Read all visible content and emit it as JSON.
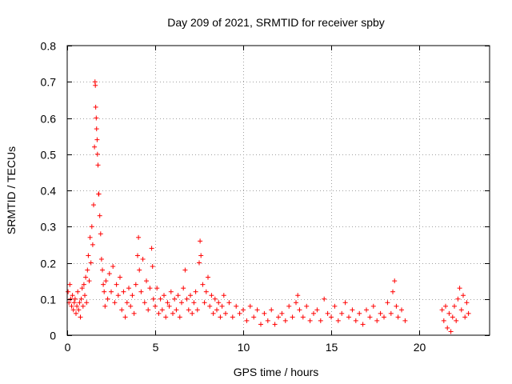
{
  "chart_data": {
    "type": "scatter",
    "title": "Day 209 of 2021, SRMTID for receiver spby",
    "xlabel": "GPS time / hours",
    "ylabel": "SRMTID / TECUs",
    "xlim": [
      0,
      24
    ],
    "ylim": [
      0,
      0.8
    ],
    "xticks": [
      0,
      5,
      10,
      15,
      20
    ],
    "xtick_labels": [
      "0",
      "5",
      "10",
      "15",
      "20"
    ],
    "yticks": [
      0,
      0.1,
      0.2,
      0.3,
      0.4,
      0.5,
      0.6,
      0.7,
      0.8
    ],
    "ytick_labels": [
      "0",
      "0.1",
      "0.2",
      "0.3",
      "0.4",
      "0.5",
      "0.6",
      "0.7",
      "0.8"
    ],
    "grid": true,
    "marker": "+",
    "marker_color": "#ff0000",
    "series": [
      {
        "name": "SRMTID",
        "points": [
          [
            0.05,
            0.12
          ],
          [
            0.1,
            0.09
          ],
          [
            0.15,
            0.14
          ],
          [
            0.2,
            0.1
          ],
          [
            0.25,
            0.08
          ],
          [
            0.3,
            0.11
          ],
          [
            0.35,
            0.07
          ],
          [
            0.4,
            0.09
          ],
          [
            0.45,
            0.1
          ],
          [
            0.5,
            0.06
          ],
          [
            0.55,
            0.08
          ],
          [
            0.6,
            0.12
          ],
          [
            0.65,
            0.07
          ],
          [
            0.7,
            0.09
          ],
          [
            0.75,
            0.05
          ],
          [
            0.8,
            0.1
          ],
          [
            0.85,
            0.13
          ],
          [
            0.9,
            0.08
          ],
          [
            0.95,
            0.14
          ],
          [
            1.0,
            0.11
          ],
          [
            1.05,
            0.16
          ],
          [
            1.1,
            0.09
          ],
          [
            1.15,
            0.18
          ],
          [
            1.2,
            0.22
          ],
          [
            1.25,
            0.15
          ],
          [
            1.3,
            0.27
          ],
          [
            1.35,
            0.2
          ],
          [
            1.4,
            0.3
          ],
          [
            1.45,
            0.25
          ],
          [
            1.5,
            0.36
          ],
          [
            1.55,
            0.52
          ],
          [
            1.58,
            0.7
          ],
          [
            1.6,
            0.69
          ],
          [
            1.62,
            0.63
          ],
          [
            1.65,
            0.6
          ],
          [
            1.67,
            0.57
          ],
          [
            1.7,
            0.54
          ],
          [
            1.72,
            0.5
          ],
          [
            1.75,
            0.47
          ],
          [
            1.78,
            0.39
          ],
          [
            1.8,
            0.39
          ],
          [
            1.85,
            0.33
          ],
          [
            1.9,
            0.28
          ],
          [
            1.95,
            0.21
          ],
          [
            2.0,
            0.18
          ],
          [
            2.05,
            0.14
          ],
          [
            2.1,
            0.12
          ],
          [
            2.15,
            0.08
          ],
          [
            2.2,
            0.15
          ],
          [
            2.3,
            0.1
          ],
          [
            2.4,
            0.17
          ],
          [
            2.5,
            0.12
          ],
          [
            2.6,
            0.19
          ],
          [
            2.7,
            0.09
          ],
          [
            2.8,
            0.14
          ],
          [
            2.9,
            0.11
          ],
          [
            3.0,
            0.16
          ],
          [
            3.1,
            0.07
          ],
          [
            3.2,
            0.12
          ],
          [
            3.3,
            0.05
          ],
          [
            3.4,
            0.09
          ],
          [
            3.5,
            0.13
          ],
          [
            3.6,
            0.08
          ],
          [
            3.7,
            0.11
          ],
          [
            3.8,
            0.06
          ],
          [
            3.9,
            0.14
          ],
          [
            4.0,
            0.22
          ],
          [
            4.05,
            0.27
          ],
          [
            4.1,
            0.18
          ],
          [
            4.2,
            0.12
          ],
          [
            4.3,
            0.21
          ],
          [
            4.4,
            0.09
          ],
          [
            4.5,
            0.15
          ],
          [
            4.6,
            0.07
          ],
          [
            4.7,
            0.13
          ],
          [
            4.8,
            0.24
          ],
          [
            4.85,
            0.19
          ],
          [
            4.9,
            0.1
          ],
          [
            5.0,
            0.08
          ],
          [
            5.1,
            0.13
          ],
          [
            5.2,
            0.06
          ],
          [
            5.3,
            0.1
          ],
          [
            5.4,
            0.07
          ],
          [
            5.5,
            0.11
          ],
          [
            5.6,
            0.05
          ],
          [
            5.7,
            0.09
          ],
          [
            5.8,
            0.08
          ],
          [
            5.9,
            0.12
          ],
          [
            6.0,
            0.06
          ],
          [
            6.1,
            0.1
          ],
          [
            6.2,
            0.07
          ],
          [
            6.3,
            0.11
          ],
          [
            6.4,
            0.05
          ],
          [
            6.5,
            0.09
          ],
          [
            6.6,
            0.13
          ],
          [
            6.7,
            0.18
          ],
          [
            6.8,
            0.1
          ],
          [
            6.9,
            0.07
          ],
          [
            7.0,
            0.11
          ],
          [
            7.1,
            0.06
          ],
          [
            7.2,
            0.09
          ],
          [
            7.3,
            0.12
          ],
          [
            7.4,
            0.07
          ],
          [
            7.5,
            0.2
          ],
          [
            7.55,
            0.26
          ],
          [
            7.6,
            0.22
          ],
          [
            7.7,
            0.14
          ],
          [
            7.8,
            0.09
          ],
          [
            7.9,
            0.12
          ],
          [
            8.0,
            0.16
          ],
          [
            8.1,
            0.08
          ],
          [
            8.2,
            0.11
          ],
          [
            8.3,
            0.06
          ],
          [
            8.4,
            0.1
          ],
          [
            8.5,
            0.07
          ],
          [
            8.6,
            0.09
          ],
          [
            8.7,
            0.05
          ],
          [
            8.8,
            0.08
          ],
          [
            8.9,
            0.11
          ],
          [
            9.0,
            0.06
          ],
          [
            9.2,
            0.09
          ],
          [
            9.4,
            0.05
          ],
          [
            9.6,
            0.08
          ],
          [
            9.8,
            0.06
          ],
          [
            10.0,
            0.07
          ],
          [
            10.2,
            0.04
          ],
          [
            10.4,
            0.08
          ],
          [
            10.6,
            0.05
          ],
          [
            10.8,
            0.07
          ],
          [
            11.0,
            0.03
          ],
          [
            11.2,
            0.06
          ],
          [
            11.4,
            0.04
          ],
          [
            11.6,
            0.07
          ],
          [
            11.8,
            0.03
          ],
          [
            12.0,
            0.05
          ],
          [
            12.2,
            0.06
          ],
          [
            12.4,
            0.04
          ],
          [
            12.6,
            0.08
          ],
          [
            12.8,
            0.05
          ],
          [
            13.0,
            0.09
          ],
          [
            13.1,
            0.11
          ],
          [
            13.2,
            0.07
          ],
          [
            13.4,
            0.05
          ],
          [
            13.6,
            0.08
          ],
          [
            13.8,
            0.04
          ],
          [
            14.0,
            0.06
          ],
          [
            14.2,
            0.07
          ],
          [
            14.4,
            0.04
          ],
          [
            14.6,
            0.1
          ],
          [
            14.8,
            0.06
          ],
          [
            15.0,
            0.05
          ],
          [
            15.2,
            0.08
          ],
          [
            15.4,
            0.04
          ],
          [
            15.6,
            0.06
          ],
          [
            15.8,
            0.09
          ],
          [
            16.0,
            0.05
          ],
          [
            16.2,
            0.07
          ],
          [
            16.4,
            0.04
          ],
          [
            16.6,
            0.06
          ],
          [
            16.8,
            0.03
          ],
          [
            17.0,
            0.07
          ],
          [
            17.2,
            0.05
          ],
          [
            17.4,
            0.08
          ],
          [
            17.6,
            0.04
          ],
          [
            17.8,
            0.06
          ],
          [
            18.0,
            0.05
          ],
          [
            18.2,
            0.09
          ],
          [
            18.4,
            0.06
          ],
          [
            18.5,
            0.12
          ],
          [
            18.6,
            0.15
          ],
          [
            18.7,
            0.08
          ],
          [
            18.8,
            0.05
          ],
          [
            19.0,
            0.07
          ],
          [
            19.2,
            0.04
          ],
          [
            21.3,
            0.07
          ],
          [
            21.4,
            0.04
          ],
          [
            21.5,
            0.08
          ],
          [
            21.6,
            0.02
          ],
          [
            21.7,
            0.06
          ],
          [
            21.8,
            0.01
          ],
          [
            21.9,
            0.05
          ],
          [
            22.0,
            0.08
          ],
          [
            22.1,
            0.04
          ],
          [
            22.2,
            0.1
          ],
          [
            22.3,
            0.13
          ],
          [
            22.4,
            0.07
          ],
          [
            22.5,
            0.11
          ],
          [
            22.6,
            0.05
          ],
          [
            22.7,
            0.09
          ],
          [
            22.8,
            0.06
          ]
        ]
      }
    ]
  }
}
